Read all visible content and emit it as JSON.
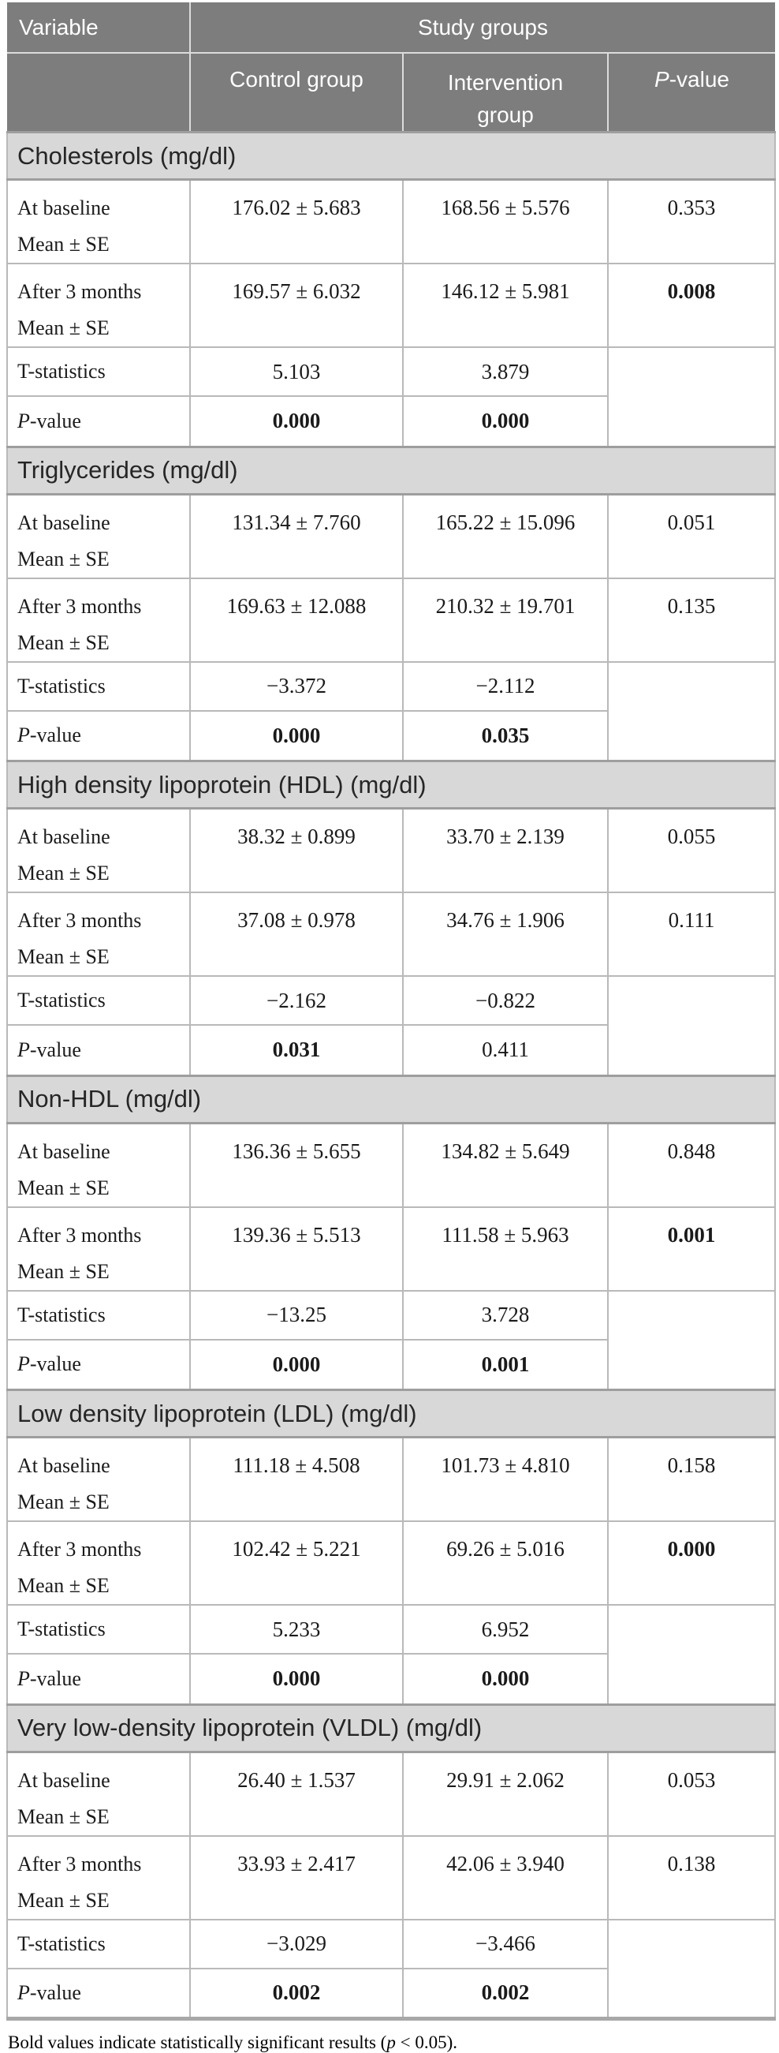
{
  "header": {
    "variable": "Variable",
    "study_groups": "Study groups",
    "control": "Control group",
    "intervention": "Intervention group",
    "pvalue_italic": "P",
    "pvalue_rest": "-value"
  },
  "row_labels": {
    "baseline_line1": "At baseline",
    "baseline_line2": "Mean ± SE",
    "after_line1": "After 3 months",
    "after_line2": "Mean ± SE",
    "tstat": "T-statistics",
    "pvalue_italic": "P",
    "pvalue_rest": "-value"
  },
  "sections": [
    {
      "title": "Cholesterols (mg/dl)",
      "rows": {
        "baseline": {
          "control": "176.02 ± 5.683",
          "intervention": "168.56 ± 5.576",
          "p": "0.353",
          "p_bold": false
        },
        "after": {
          "control": "169.57 ± 6.032",
          "intervention": "146.12 ± 5.981",
          "p": "0.008",
          "p_bold": true
        },
        "tstat": {
          "control": "5.103",
          "intervention": "3.879"
        },
        "pvalue": {
          "control": "0.000",
          "control_bold": true,
          "intervention": "0.000",
          "intervention_bold": true
        }
      }
    },
    {
      "title": "Triglycerides (mg/dl)",
      "rows": {
        "baseline": {
          "control": "131.34 ± 7.760",
          "intervention": "165.22 ± 15.096",
          "p": "0.051",
          "p_bold": false
        },
        "after": {
          "control": "169.63 ± 12.088",
          "intervention": "210.32 ± 19.701",
          "p": "0.135",
          "p_bold": false
        },
        "tstat": {
          "control": "−3.372",
          "intervention": "−2.112"
        },
        "pvalue": {
          "control": "0.000",
          "control_bold": true,
          "intervention": "0.035",
          "intervention_bold": true
        }
      }
    },
    {
      "title": "High density lipoprotein (HDL) (mg/dl)",
      "rows": {
        "baseline": {
          "control": "38.32 ± 0.899",
          "intervention": "33.70 ± 2.139",
          "p": "0.055",
          "p_bold": false
        },
        "after": {
          "control": "37.08 ± 0.978",
          "intervention": "34.76 ± 1.906",
          "p": "0.111",
          "p_bold": false
        },
        "tstat": {
          "control": "−2.162",
          "intervention": "−0.822"
        },
        "pvalue": {
          "control": "0.031",
          "control_bold": true,
          "intervention": "0.411",
          "intervention_bold": false
        }
      }
    },
    {
      "title": "Non-HDL (mg/dl)",
      "rows": {
        "baseline": {
          "control": "136.36 ± 5.655",
          "intervention": "134.82 ± 5.649",
          "p": "0.848",
          "p_bold": false
        },
        "after": {
          "control": "139.36 ± 5.513",
          "intervention": "111.58 ± 5.963",
          "p": "0.001",
          "p_bold": true
        },
        "tstat": {
          "control": "−13.25",
          "intervention": "3.728"
        },
        "pvalue": {
          "control": "0.000",
          "control_bold": true,
          "intervention": "0.001",
          "intervention_bold": true
        }
      }
    },
    {
      "title": "Low density lipoprotein (LDL) (mg/dl)",
      "rows": {
        "baseline": {
          "control": "111.18 ± 4.508",
          "intervention": "101.73 ± 4.810",
          "p": "0.158",
          "p_bold": false
        },
        "after": {
          "control": "102.42 ± 5.221",
          "intervention": "69.26 ± 5.016",
          "p": "0.000",
          "p_bold": true
        },
        "tstat": {
          "control": "5.233",
          "intervention": "6.952"
        },
        "pvalue": {
          "control": "0.000",
          "control_bold": true,
          "intervention": "0.000",
          "intervention_bold": true
        }
      }
    },
    {
      "title": "Very low-density lipoprotein (VLDL) (mg/dl)",
      "rows": {
        "baseline": {
          "control": "26.40 ± 1.537",
          "intervention": "29.91 ± 2.062",
          "p": "0.053",
          "p_bold": false
        },
        "after": {
          "control": "33.93 ± 2.417",
          "intervention": "42.06 ± 3.940",
          "p": "0.138",
          "p_bold": false
        },
        "tstat": {
          "control": "−3.029",
          "intervention": "−3.466"
        },
        "pvalue": {
          "control": "0.002",
          "control_bold": true,
          "intervention": "0.002",
          "intervention_bold": true
        }
      }
    }
  ],
  "footnote": {
    "pre": "Bold values indicate statistically significant results (",
    "p": "p",
    "post": " < 0.05)."
  },
  "colors": {
    "header_bg": "#7d7d7d",
    "header_text": "#ffffff",
    "section_band_bg": "#d8d8d8",
    "grid_line": "#b9b9b9",
    "band_line": "#9e9e9e",
    "header_line": "#dcdcdc",
    "table_bottom_line": "#a8a8a8",
    "body_text": "#1a1a1a"
  }
}
